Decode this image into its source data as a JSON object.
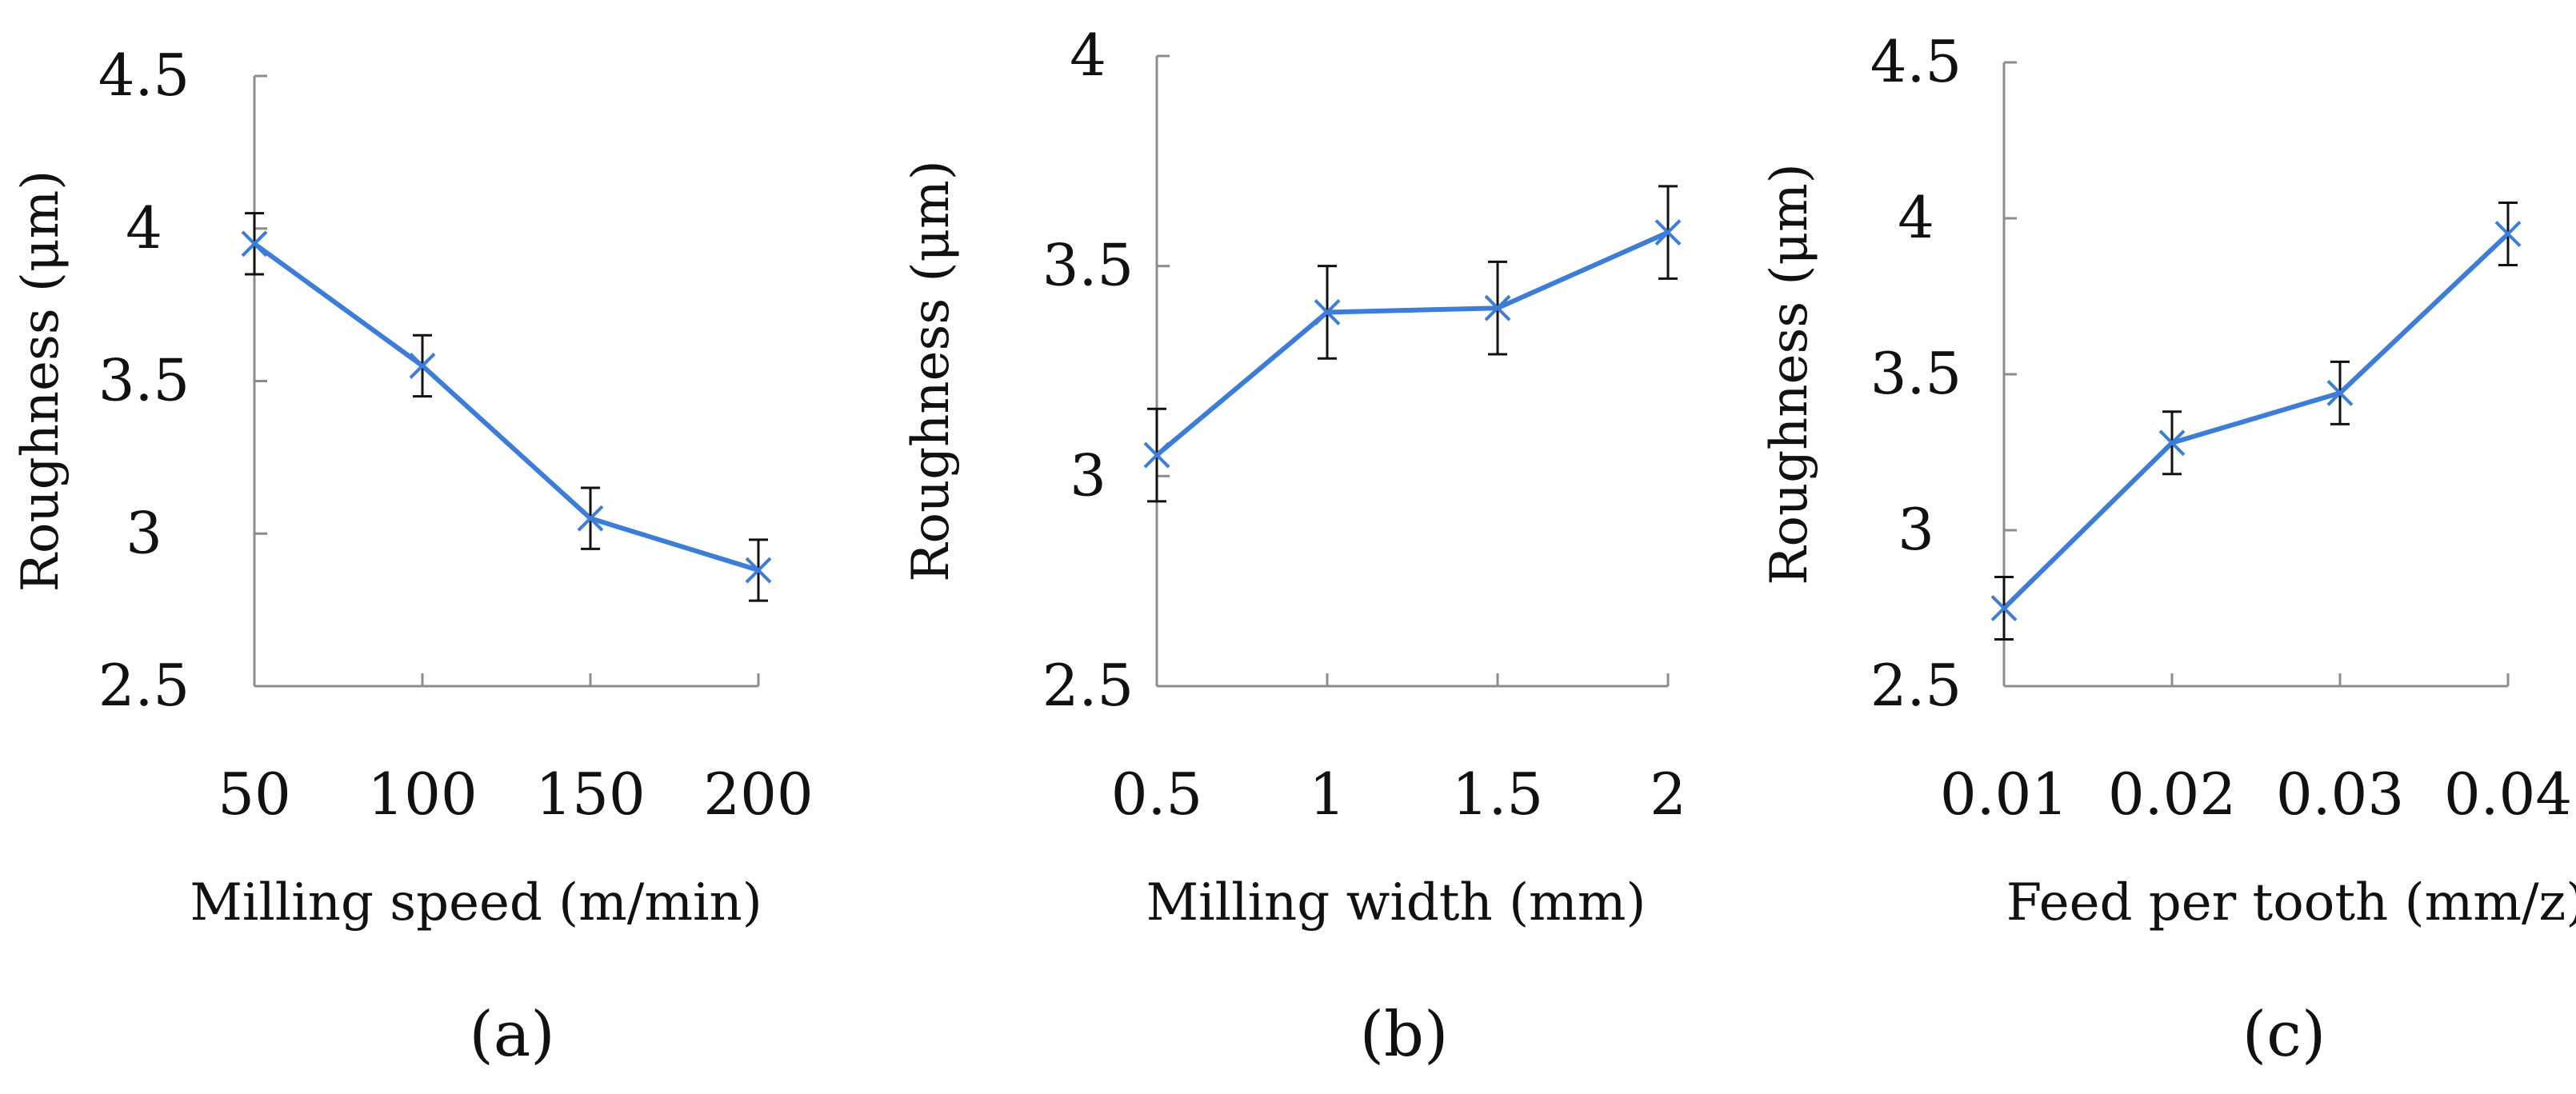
{
  "chart_data": [
    {
      "type": "line",
      "panel": "(a)",
      "xlabel": "Milling speed (m/min)",
      "ylabel": "Roughness  (μm)",
      "categories": [
        "50",
        "100",
        "150",
        "200"
      ],
      "values": [
        3.95,
        3.55,
        3.05,
        2.88
      ],
      "errors": [
        0.1,
        0.1,
        0.1,
        0.1
      ],
      "ylim": [
        2.5,
        4.5
      ],
      "yticks": [
        "2.5",
        "3",
        "3.5",
        "4",
        "4.5"
      ],
      "color": "#3b7dd8"
    },
    {
      "type": "line",
      "panel": "(b)",
      "xlabel": "Milling width (mm)",
      "ylabel": "Roughness (μm)",
      "categories": [
        "0.5",
        "1",
        "1.5",
        "2"
      ],
      "values": [
        3.05,
        3.39,
        3.4,
        3.58
      ],
      "errors": [
        0.11,
        0.11,
        0.11,
        0.11
      ],
      "ylim": [
        2.5,
        4
      ],
      "yticks": [
        "2.5",
        "3",
        "3.5",
        "4"
      ],
      "color": "#3b7dd8"
    },
    {
      "type": "line",
      "panel": "(c)",
      "xlabel": "Feed per tooth (mm/z)",
      "ylabel": "Roughness (μm)",
      "categories": [
        "0.01",
        "0.02",
        "0.03",
        "0.04"
      ],
      "values": [
        2.75,
        3.28,
        3.44,
        3.95
      ],
      "errors": [
        0.1,
        0.1,
        0.1,
        0.1
      ],
      "ylim": [
        2.5,
        4.5
      ],
      "yticks": [
        "2.5",
        "3",
        "3.5",
        "4",
        "4.5"
      ],
      "color": "#3b7dd8"
    }
  ]
}
